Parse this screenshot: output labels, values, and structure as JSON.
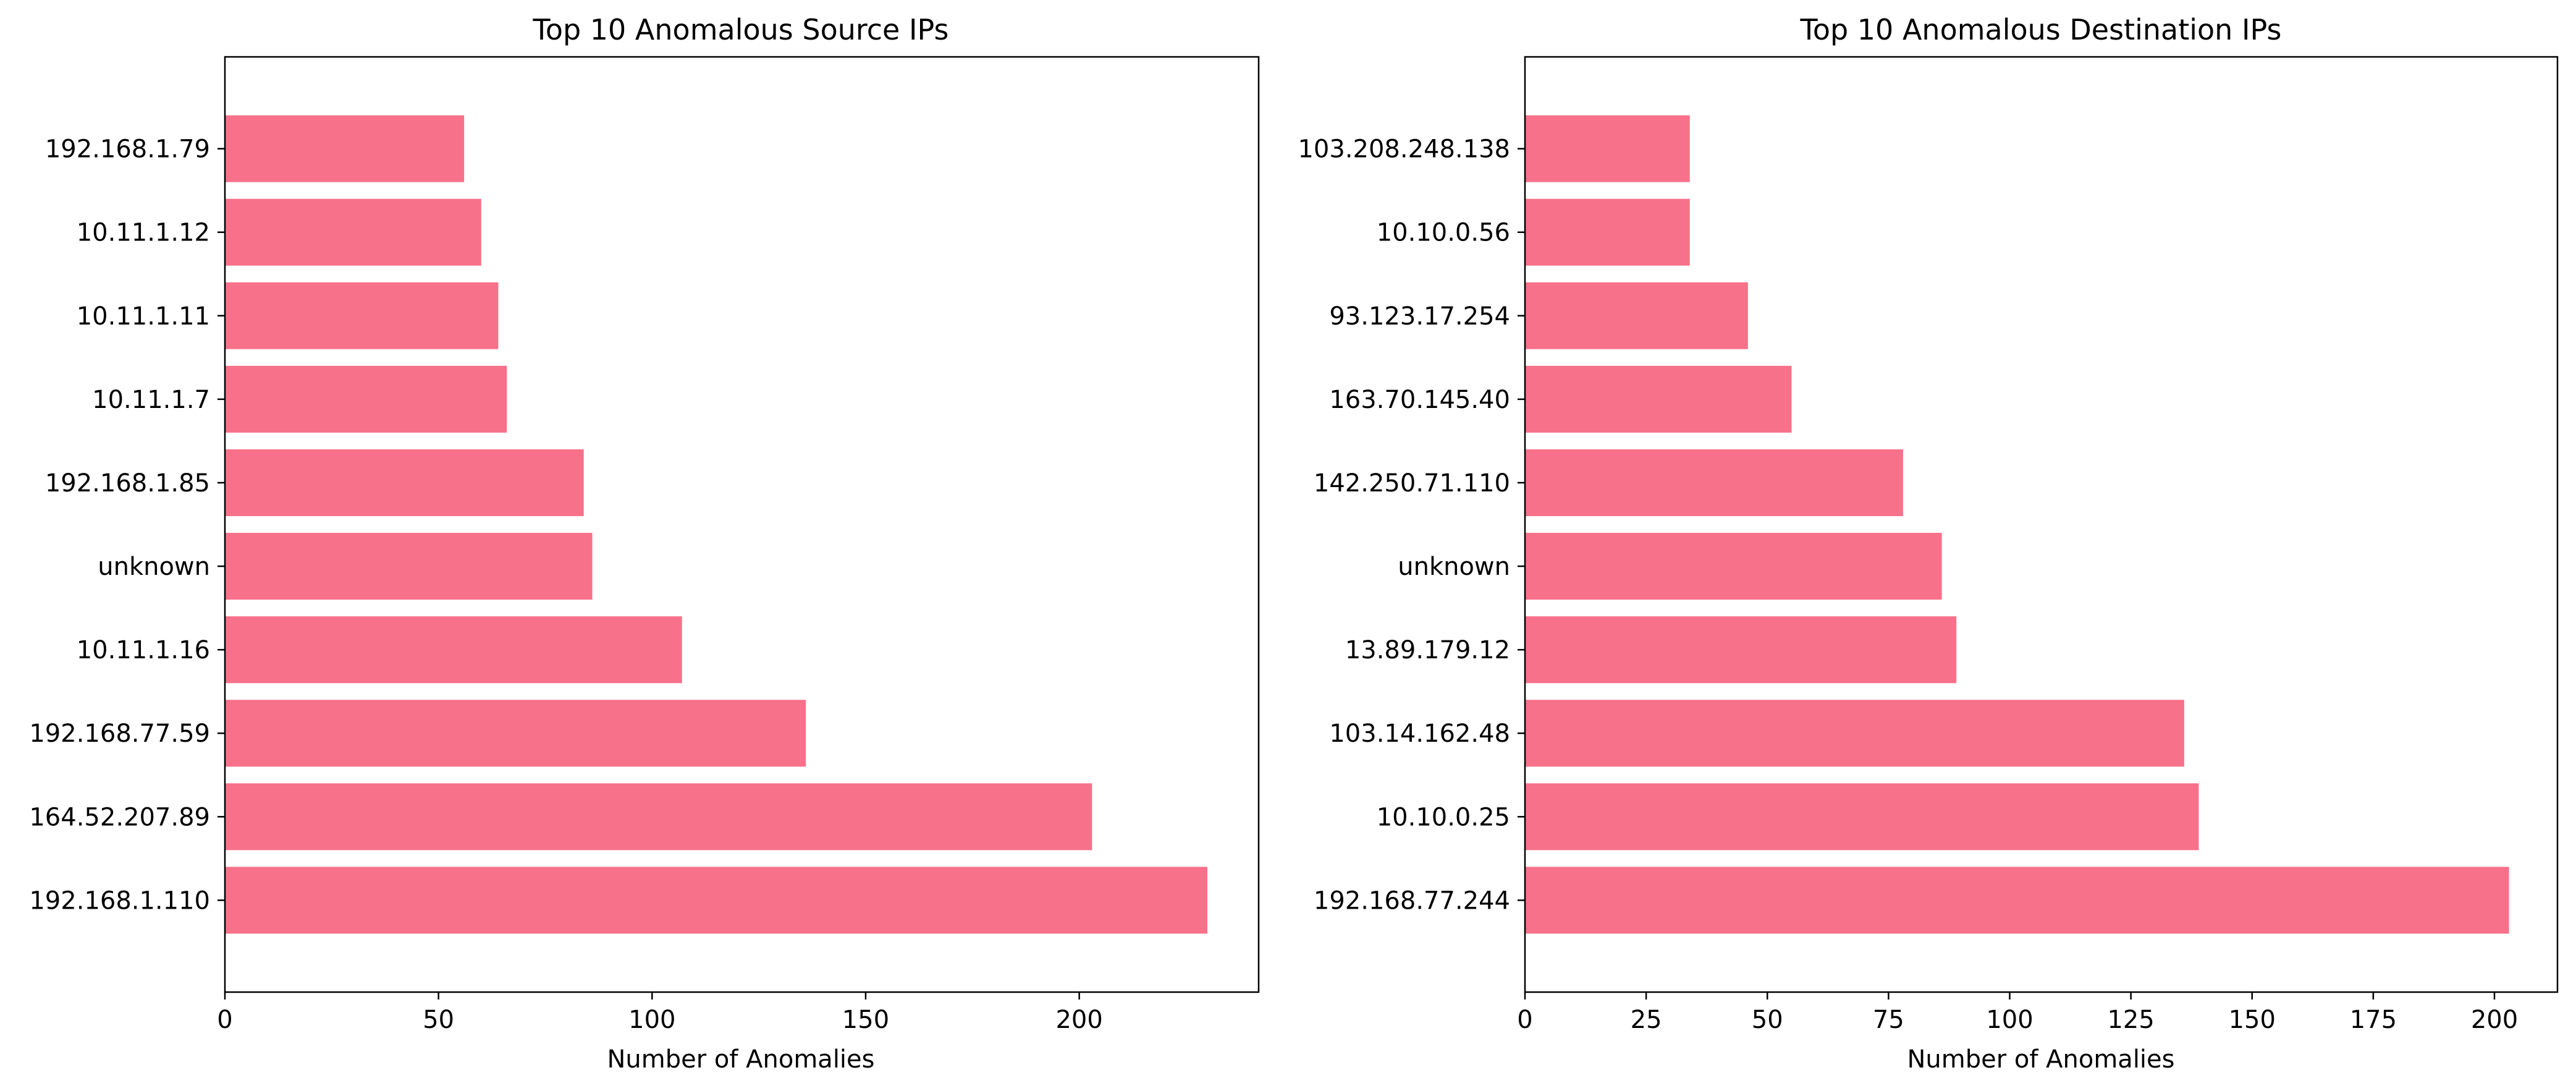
{
  "chart_data": [
    {
      "type": "bar",
      "orientation": "horizontal",
      "title": "Top 10 Anomalous Source IPs",
      "xlabel": "Number of Anomalies",
      "ylabel": "",
      "xlim": [
        0,
        242
      ],
      "xticks": [
        0,
        50,
        100,
        150,
        200
      ],
      "grid": false,
      "legend": "none",
      "bar_color": "#f7718a",
      "categories": [
        "192.168.1.110",
        "164.52.207.89",
        "192.168.77.59",
        "10.11.1.16",
        "unknown",
        "192.168.1.85",
        "10.11.1.7",
        "10.11.1.11",
        "10.11.1.12",
        "192.168.1.79"
      ],
      "values": [
        230,
        203,
        136,
        107,
        86,
        84,
        66,
        64,
        60,
        56
      ]
    },
    {
      "type": "bar",
      "orientation": "horizontal",
      "title": "Top 10 Anomalous Destination IPs",
      "xlabel": "Number of Anomalies",
      "ylabel": "",
      "xlim": [
        0,
        213
      ],
      "xticks": [
        0,
        25,
        50,
        75,
        100,
        125,
        150,
        175,
        200
      ],
      "grid": false,
      "legend": "none",
      "bar_color": "#f7718a",
      "categories": [
        "192.168.77.244",
        "10.10.0.25",
        "103.14.162.48",
        "13.89.179.12",
        "unknown",
        "142.250.71.110",
        "163.70.145.40",
        "93.123.17.254",
        "10.10.0.56",
        "103.208.248.138"
      ],
      "values": [
        203,
        139,
        136,
        89,
        86,
        78,
        55,
        46,
        34,
        34
      ]
    }
  ]
}
